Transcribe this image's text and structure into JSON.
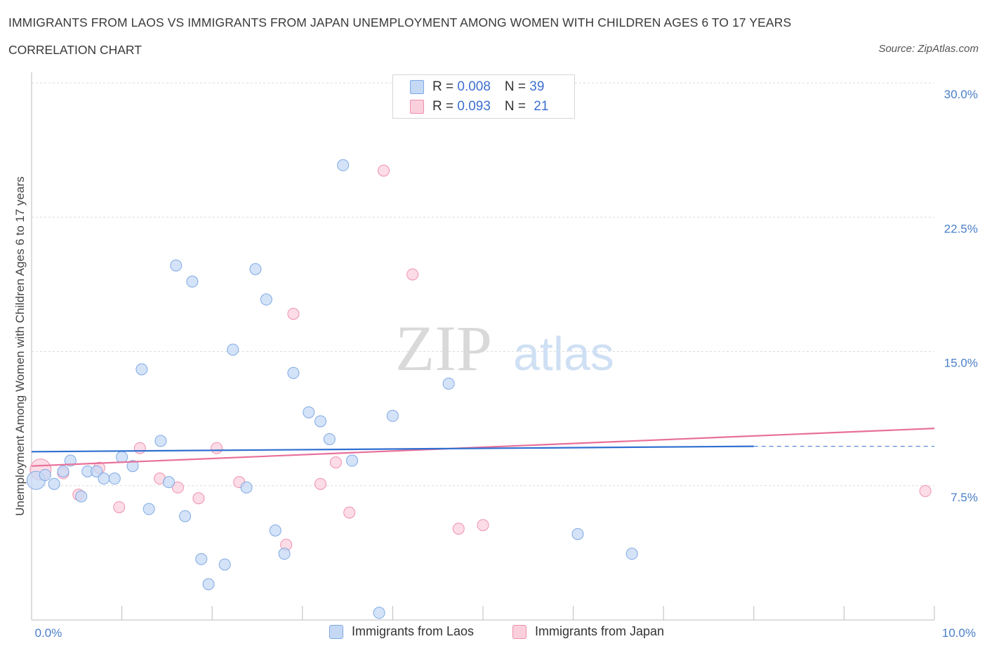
{
  "header": {
    "title": "IMMIGRANTS FROM LAOS VS IMMIGRANTS FROM JAPAN UNEMPLOYMENT AMONG WOMEN WITH CHILDREN AGES 6 TO 17 YEARS",
    "subtitle": "CORRELATION CHART",
    "source": "Source: ZipAtlas.com"
  },
  "watermark": {
    "zip": "ZIP",
    "atlas": "atlas"
  },
  "legend": {
    "rows": [
      {
        "r_label": "R = ",
        "r_value": "0.008",
        "n_label": "N = ",
        "n_value": "39",
        "color": "#aac7f0"
      },
      {
        "r_label": "R = ",
        "r_value": "0.093",
        "n_label": "N = ",
        "n_value": "21",
        "color": "#f6b8cb"
      }
    ]
  },
  "bottom_legend": {
    "items": [
      {
        "label": "Immigrants from Laos",
        "color": "#aac7f0"
      },
      {
        "label": "Immigrants from Japan",
        "color": "#f6b8cb"
      }
    ]
  },
  "colors": {
    "laos_fill": "#c5d9f5",
    "laos_stroke": "#7fa9e3",
    "laos_line": "#2f6fd0",
    "japan_fill": "#fbd0dd",
    "japan_stroke": "#ee90ae",
    "japan_line": "#e8709a",
    "tick_label": "#4a7fc7",
    "grid": "#dcdcdc"
  },
  "chart_data": {
    "type": "scatter",
    "title": "IMMIGRANTS FROM LAOS VS IMMIGRANTS FROM JAPAN UNEMPLOYMENT AMONG WOMEN WITH CHILDREN AGES 6 TO 17 YEARS",
    "xlabel": "",
    "ylabel": "Unemployment Among Women with Children Ages 6 to 17 years",
    "xlim": [
      0,
      10
    ],
    "ylim": [
      0,
      30
    ],
    "x_tick_labels": [
      "0.0%",
      "10.0%"
    ],
    "y_ticks": [
      7.5,
      15.0,
      22.5,
      30.0
    ],
    "y_tick_labels": [
      "7.5%",
      "15.0%",
      "22.5%",
      "30.0%"
    ],
    "grid": true,
    "legend_position": "top-center",
    "series": [
      {
        "name": "Immigrants from Laos",
        "points": [
          [
            0.05,
            7.8
          ],
          [
            0.15,
            8.1
          ],
          [
            0.25,
            7.6
          ],
          [
            0.35,
            8.3
          ],
          [
            0.43,
            8.9
          ],
          [
            0.55,
            6.9
          ],
          [
            0.62,
            8.3
          ],
          [
            0.72,
            8.3
          ],
          [
            0.8,
            7.9
          ],
          [
            0.92,
            7.9
          ],
          [
            1.0,
            9.1
          ],
          [
            1.12,
            8.6
          ],
          [
            1.22,
            14.0
          ],
          [
            1.3,
            6.2
          ],
          [
            1.43,
            10.0
          ],
          [
            1.52,
            7.7
          ],
          [
            1.6,
            19.8
          ],
          [
            1.7,
            5.8
          ],
          [
            1.78,
            18.9
          ],
          [
            1.88,
            3.4
          ],
          [
            1.96,
            2.0
          ],
          [
            2.14,
            3.1
          ],
          [
            2.23,
            15.1
          ],
          [
            2.38,
            7.4
          ],
          [
            2.48,
            19.6
          ],
          [
            2.6,
            17.9
          ],
          [
            2.7,
            5.0
          ],
          [
            2.8,
            3.7
          ],
          [
            2.9,
            13.8
          ],
          [
            3.07,
            11.6
          ],
          [
            3.2,
            11.1
          ],
          [
            3.3,
            10.1
          ],
          [
            3.45,
            25.4
          ],
          [
            3.55,
            8.9
          ],
          [
            3.85,
            0.4
          ],
          [
            4.0,
            11.4
          ],
          [
            4.62,
            13.2
          ],
          [
            6.05,
            4.8
          ],
          [
            6.65,
            3.7
          ]
        ],
        "trend": {
          "x": [
            0.0,
            8.0
          ],
          "y": [
            9.4,
            9.7
          ]
        },
        "trend_dashed": {
          "x": [
            8.0,
            10.0
          ],
          "y": [
            9.7,
            9.7
          ]
        }
      },
      {
        "name": "Immigrants from Japan",
        "points": [
          [
            0.1,
            8.4
          ],
          [
            0.35,
            8.2
          ],
          [
            0.52,
            7.0
          ],
          [
            0.75,
            8.5
          ],
          [
            0.97,
            6.3
          ],
          [
            1.2,
            9.6
          ],
          [
            1.42,
            7.9
          ],
          [
            1.62,
            7.4
          ],
          [
            1.85,
            6.8
          ],
          [
            2.05,
            9.6
          ],
          [
            2.3,
            7.7
          ],
          [
            2.82,
            4.2
          ],
          [
            2.9,
            17.1
          ],
          [
            3.2,
            7.6
          ],
          [
            3.37,
            8.8
          ],
          [
            3.52,
            6.0
          ],
          [
            3.9,
            25.1
          ],
          [
            4.22,
            19.3
          ],
          [
            4.73,
            5.1
          ],
          [
            5.0,
            5.3
          ],
          [
            9.9,
            7.2
          ]
        ],
        "trend": {
          "x": [
            0.0,
            10.0
          ],
          "y": [
            8.6,
            10.7
          ]
        }
      }
    ]
  }
}
